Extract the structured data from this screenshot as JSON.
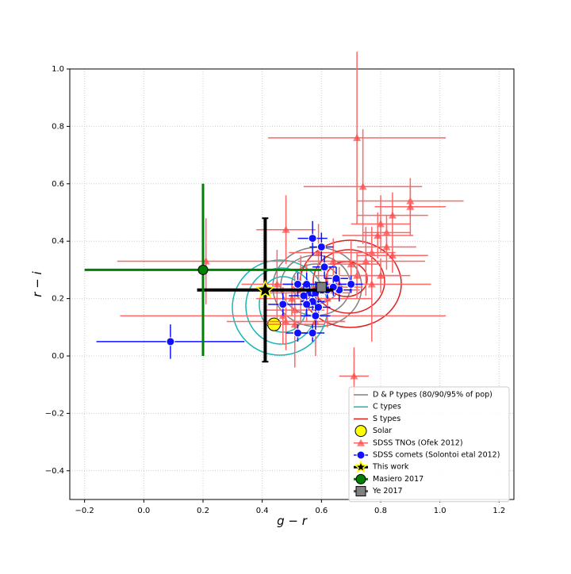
{
  "chart_data": {
    "type": "scatter",
    "x_label": "g − r",
    "y_label": "r − i",
    "xlim": [
      -0.25,
      1.25
    ],
    "ylim": [
      -0.5,
      1.0
    ],
    "xticks": [
      {
        "value": -0.2,
        "label": "−0.2"
      },
      {
        "value": 0,
        "label": "0.0"
      },
      0.2,
      0.4,
      0.6,
      0.8,
      {
        "value": 1,
        "label": "1.0"
      },
      1.2
    ],
    "yticks": [
      {
        "value": -0.4,
        "label": "−0.4"
      },
      {
        "value": -0.2,
        "label": "−0.2"
      },
      {
        "value": 0,
        "label": "0.0"
      },
      0.2,
      0.4,
      0.6,
      0.8,
      {
        "value": 1,
        "label": "1.0"
      }
    ],
    "grid": true,
    "legend": "lower right",
    "contours": [
      {
        "name": "D & P types (80/90/95% of pop)",
        "color": "#808080"
      },
      {
        "name": "C types",
        "color": "#17b6b6"
      },
      {
        "name": "S types",
        "color": "#e02020"
      }
    ],
    "series": [
      {
        "name": "Solar",
        "marker": "circle",
        "color": "#ffff00",
        "x": [
          0.44
        ],
        "values": [
          0.11
        ]
      },
      {
        "name": "SDSS TNOs (Ofek 2012)",
        "marker": "triangle",
        "color": "#ff4444",
        "x": [
          0.72,
          0.9,
          0.9,
          0.84,
          0.74,
          0.8,
          0.82,
          0.79,
          0.82,
          0.77,
          0.84,
          0.7,
          0.75,
          0.64,
          0.59,
          0.48,
          0.21,
          0.72,
          0.8,
          0.77,
          0.62,
          0.66,
          0.55,
          0.51,
          0.47,
          0.48,
          0.51,
          0.45,
          0.58,
          0.71,
          0.62,
          0.5,
          0.53
        ],
        "values": [
          0.76,
          0.54,
          0.52,
          0.49,
          0.59,
          0.46,
          0.43,
          0.42,
          0.38,
          0.36,
          0.35,
          0.32,
          0.33,
          0.33,
          0.36,
          0.44,
          0.33,
          0.28,
          0.28,
          0.25,
          0.24,
          0.25,
          0.22,
          0.16,
          0.14,
          0.12,
          0.11,
          0.25,
          0.12,
          -0.07,
          0.2,
          0.2,
          0.23
        ],
        "xerr": [
          0.3,
          0.18,
          0.12,
          0.12,
          0.2,
          0.1,
          0.08,
          0.12,
          0.1,
          0.08,
          0.12,
          0.1,
          0.2,
          0.12,
          0.1,
          0.1,
          0.3,
          0.15,
          0.1,
          0.2,
          0.12,
          0.1,
          0.15,
          0.1,
          0.55,
          0.2,
          0.1,
          0.12,
          0.1,
          0.05,
          0.15,
          0.12,
          0.2
        ],
        "yerr": [
          0.3,
          0.06,
          0.1,
          0.08,
          0.2,
          0.1,
          0.06,
          0.08,
          0.08,
          0.05,
          0.06,
          0.08,
          0.12,
          0.08,
          0.1,
          0.12,
          0.15,
          0.08,
          0.06,
          0.2,
          0.08,
          0.06,
          0.1,
          0.12,
          0.1,
          0.1,
          0.15,
          0.12,
          0.12,
          0.1,
          0.1,
          0.06,
          0.12
        ]
      },
      {
        "name": "SDSS comets (Solontoi etal 2012)",
        "marker": "circle",
        "color": "#1010ff",
        "x": [
          0.09,
          0.57,
          0.6,
          0.61,
          0.55,
          0.52,
          0.56,
          0.58,
          0.54,
          0.57,
          0.55,
          0.59,
          0.58,
          0.52,
          0.57,
          0.65,
          0.66,
          0.7,
          0.47,
          0.62,
          0.64
        ],
        "values": [
          0.05,
          0.41,
          0.38,
          0.31,
          0.25,
          0.25,
          0.22,
          0.22,
          0.21,
          0.19,
          0.18,
          0.17,
          0.14,
          0.08,
          0.08,
          0.27,
          0.23,
          0.25,
          0.18,
          0.23,
          0.24
        ],
        "xerr": [
          0.25,
          0.05,
          0.04,
          0.04,
          0.05,
          0.05,
          0.03,
          0.04,
          0.05,
          0.04,
          0.03,
          0.04,
          0.05,
          0.04,
          0.04,
          0.04,
          0.04,
          0.04,
          0.05,
          0.04,
          0.03
        ],
        "yerr": [
          0.06,
          0.06,
          0.05,
          0.04,
          0.04,
          0.04,
          0.03,
          0.04,
          0.04,
          0.03,
          0.04,
          0.03,
          0.05,
          0.03,
          0.03,
          0.04,
          0.04,
          0.03,
          0.04,
          0.03,
          0.03
        ]
      },
      {
        "name": "This work",
        "marker": "star",
        "color": "#000000",
        "x": [
          0.41
        ],
        "values": [
          0.23
        ],
        "xerr": [
          0.23
        ],
        "yerr": [
          0.25
        ]
      },
      {
        "name": "Masiero 2017",
        "marker": "circle",
        "color": "#008000",
        "x": [
          0.2
        ],
        "values": [
          0.3
        ],
        "xerr": [
          0.4
        ],
        "yerr": [
          0.3
        ]
      },
      {
        "name": "Ye 2017",
        "marker": "square",
        "color": "#808080",
        "x": [
          0.6
        ],
        "values": [
          0.24
        ],
        "xerr": [
          0.01
        ],
        "yerr": [
          0.01
        ]
      }
    ]
  }
}
